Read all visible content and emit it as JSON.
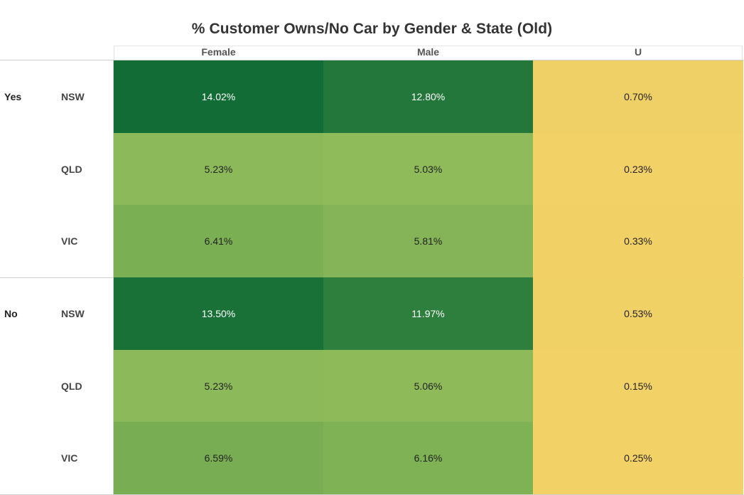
{
  "chart_data": {
    "type": "heatmap",
    "title": "% Customer Owns/No Car by Gender & State (Old)",
    "columns": [
      "Female",
      "Male",
      "U"
    ],
    "groups": [
      {
        "label": "Yes",
        "rows": [
          {
            "state": "NSW",
            "values": [
              14.02,
              12.8,
              0.7
            ],
            "labels": [
              "14.02%",
              "12.80%",
              "0.70%"
            ]
          },
          {
            "state": "QLD",
            "values": [
              5.23,
              5.03,
              0.23
            ],
            "labels": [
              "5.23%",
              "5.03%",
              "0.23%"
            ]
          },
          {
            "state": "VIC",
            "values": [
              6.41,
              5.81,
              0.33
            ],
            "labels": [
              "6.41%",
              "5.81%",
              "0.33%"
            ]
          }
        ]
      },
      {
        "label": "No",
        "rows": [
          {
            "state": "NSW",
            "values": [
              13.5,
              11.97,
              0.53
            ],
            "labels": [
              "13.50%",
              "11.97%",
              "0.53%"
            ]
          },
          {
            "state": "QLD",
            "values": [
              5.23,
              5.06,
              0.15
            ],
            "labels": [
              "5.23%",
              "5.06%",
              "0.15%"
            ]
          },
          {
            "state": "VIC",
            "values": [
              6.59,
              6.16,
              0.25
            ],
            "labels": [
              "6.59%",
              "6.16%",
              "0.25%"
            ]
          }
        ]
      }
    ],
    "color_scale": {
      "low": "#f2d166",
      "mid": "#8fbb5a",
      "high": "#126c35"
    },
    "grid": false,
    "legend": "none"
  }
}
